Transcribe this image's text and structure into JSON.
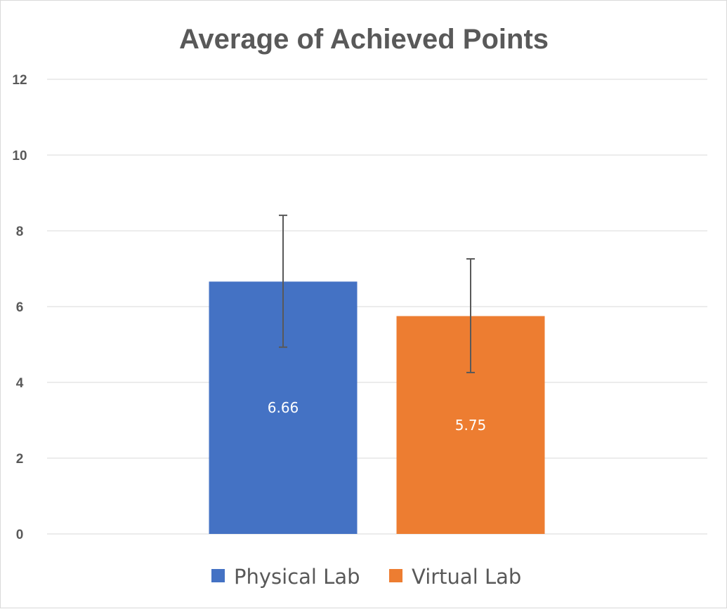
{
  "chart_data": {
    "type": "bar",
    "title": "Average of Achieved Points",
    "xlabel": "",
    "ylabel": "",
    "ylim": [
      0,
      12
    ],
    "yticks": [
      0,
      2,
      4,
      6,
      8,
      10,
      12
    ],
    "grid": true,
    "legend_position": "bottom",
    "categories": [
      "Physical Lab",
      "Virtual Lab"
    ],
    "series": [
      {
        "name": "Physical Lab",
        "value": 6.66,
        "label": "6.66",
        "error_low": 4.93,
        "error_high": 8.41,
        "color": "#4472c4"
      },
      {
        "name": "Virtual Lab",
        "value": 5.75,
        "label": "5.75",
        "error_low": 4.26,
        "error_high": 7.26,
        "color": "#ed7d31"
      }
    ]
  }
}
